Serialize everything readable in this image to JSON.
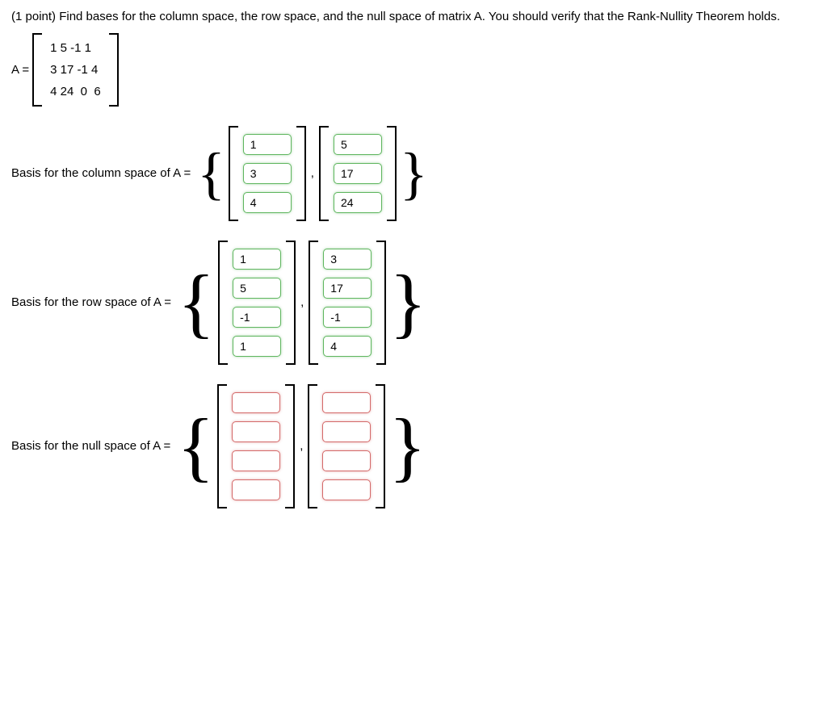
{
  "question": "(1 point) Find bases for the column space, the row space, and the null space of matrix A. You should verify that the Rank-Nullity Theorem holds.",
  "matrixA": {
    "label": "A =",
    "rows": [
      "1 5 -1 1",
      "3 17 -1 4",
      "4 24  0  6"
    ]
  },
  "columnSpace": {
    "label": "Basis for the column space of A =",
    "status": "green",
    "vectors": [
      [
        "1",
        "3",
        "4"
      ],
      [
        "5",
        "17",
        "24"
      ]
    ]
  },
  "rowSpace": {
    "label": "Basis for the row space of A =",
    "status": "green",
    "vectors": [
      [
        "1",
        "5",
        "-1",
        "1"
      ],
      [
        "3",
        "17",
        "-1",
        "4"
      ]
    ]
  },
  "nullSpace": {
    "label": "Basis for the null space of A =",
    "status": "red",
    "vectors": [
      [
        "",
        "",
        "",
        ""
      ],
      [
        "",
        "",
        "",
        ""
      ]
    ]
  },
  "colors": {
    "green_border": "#5fb65f",
    "red_border": "#d46a6a",
    "text": "#000000",
    "background": "#ffffff"
  }
}
